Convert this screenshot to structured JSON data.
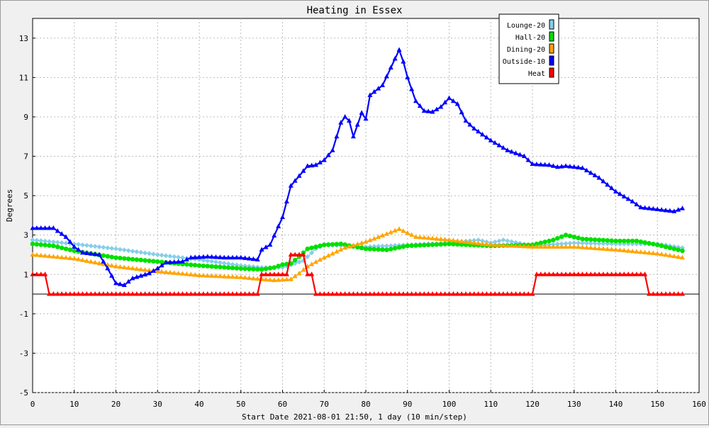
{
  "chart_data": {
    "type": "line",
    "title": "Heating in Essex",
    "xlabel": "Start Date 2021-08-01 21:50, 1 day (10 min/step)",
    "ylabel": "Degrees",
    "xlim": [
      0,
      160
    ],
    "ylim": [
      -5,
      14
    ],
    "xticks": [
      0,
      10,
      20,
      30,
      40,
      50,
      60,
      70,
      80,
      90,
      100,
      110,
      120,
      130,
      140,
      150,
      160
    ],
    "yticks": [
      -5,
      -3,
      -1,
      1,
      3,
      5,
      7,
      9,
      11,
      13
    ],
    "grid": true,
    "legend_position": "top-right",
    "series": [
      {
        "name": "Lounge-20",
        "color": "#87ceeb",
        "marker": "diamond",
        "points": [
          [
            0,
            2.75
          ],
          [
            10,
            2.55
          ],
          [
            20,
            2.3
          ],
          [
            30,
            2.0
          ],
          [
            40,
            1.75
          ],
          [
            50,
            1.45
          ],
          [
            55,
            1.35
          ],
          [
            60,
            1.35
          ],
          [
            65,
            1.7
          ],
          [
            68,
            2.3
          ],
          [
            70,
            2.5
          ],
          [
            80,
            2.4
          ],
          [
            90,
            2.5
          ],
          [
            100,
            2.6
          ],
          [
            107,
            2.75
          ],
          [
            110,
            2.6
          ],
          [
            113,
            2.75
          ],
          [
            120,
            2.45
          ],
          [
            130,
            2.6
          ],
          [
            140,
            2.55
          ],
          [
            150,
            2.55
          ],
          [
            156,
            2.35
          ]
        ]
      },
      {
        "name": "Hall-20",
        "color": "#00e000",
        "marker": "circle",
        "points": [
          [
            0,
            2.55
          ],
          [
            5,
            2.45
          ],
          [
            10,
            2.2
          ],
          [
            20,
            1.85
          ],
          [
            30,
            1.65
          ],
          [
            40,
            1.45
          ],
          [
            50,
            1.3
          ],
          [
            55,
            1.25
          ],
          [
            58,
            1.35
          ],
          [
            60,
            1.5
          ],
          [
            62,
            1.55
          ],
          [
            64,
            1.9
          ],
          [
            66,
            2.3
          ],
          [
            70,
            2.5
          ],
          [
            74,
            2.55
          ],
          [
            80,
            2.3
          ],
          [
            85,
            2.25
          ],
          [
            90,
            2.45
          ],
          [
            100,
            2.55
          ],
          [
            110,
            2.45
          ],
          [
            120,
            2.5
          ],
          [
            125,
            2.75
          ],
          [
            128,
            3.0
          ],
          [
            132,
            2.8
          ],
          [
            140,
            2.7
          ],
          [
            145,
            2.7
          ],
          [
            150,
            2.5
          ],
          [
            156,
            2.2
          ]
        ]
      },
      {
        "name": "Dining-20",
        "color": "#ffa500",
        "marker": "triangle",
        "points": [
          [
            0,
            2.0
          ],
          [
            10,
            1.8
          ],
          [
            20,
            1.4
          ],
          [
            30,
            1.15
          ],
          [
            40,
            0.95
          ],
          [
            50,
            0.85
          ],
          [
            55,
            0.75
          ],
          [
            58,
            0.7
          ],
          [
            62,
            0.75
          ],
          [
            64,
            1.05
          ],
          [
            66,
            1.4
          ],
          [
            70,
            1.85
          ],
          [
            75,
            2.35
          ],
          [
            80,
            2.65
          ],
          [
            85,
            3.05
          ],
          [
            88,
            3.3
          ],
          [
            92,
            2.9
          ],
          [
            100,
            2.75
          ],
          [
            110,
            2.5
          ],
          [
            120,
            2.4
          ],
          [
            130,
            2.4
          ],
          [
            140,
            2.25
          ],
          [
            150,
            2.05
          ],
          [
            156,
            1.85
          ]
        ]
      },
      {
        "name": "Outside-10",
        "color": "#0000ff",
        "marker": "triangle",
        "points": [
          [
            0,
            3.35
          ],
          [
            5,
            3.35
          ],
          [
            8,
            2.9
          ],
          [
            10,
            2.4
          ],
          [
            12,
            2.1
          ],
          [
            16,
            2.0
          ],
          [
            18,
            1.3
          ],
          [
            20,
            0.55
          ],
          [
            22,
            0.45
          ],
          [
            24,
            0.8
          ],
          [
            28,
            1.05
          ],
          [
            30,
            1.3
          ],
          [
            32,
            1.6
          ],
          [
            36,
            1.65
          ],
          [
            38,
            1.85
          ],
          [
            42,
            1.9
          ],
          [
            46,
            1.85
          ],
          [
            50,
            1.85
          ],
          [
            54,
            1.75
          ],
          [
            55,
            2.25
          ],
          [
            57,
            2.5
          ],
          [
            60,
            3.9
          ],
          [
            62,
            5.5
          ],
          [
            64,
            6.0
          ],
          [
            66,
            6.5
          ],
          [
            68,
            6.55
          ],
          [
            70,
            6.8
          ],
          [
            72,
            7.3
          ],
          [
            74,
            8.7
          ],
          [
            75,
            9.0
          ],
          [
            76,
            8.8
          ],
          [
            77,
            8.0
          ],
          [
            79,
            9.2
          ],
          [
            80,
            8.9
          ],
          [
            81,
            10.1
          ],
          [
            84,
            10.6
          ],
          [
            86,
            11.5
          ],
          [
            88,
            12.4
          ],
          [
            89,
            11.8
          ],
          [
            90,
            11.0
          ],
          [
            92,
            9.8
          ],
          [
            94,
            9.3
          ],
          [
            96,
            9.25
          ],
          [
            98,
            9.5
          ],
          [
            100,
            9.95
          ],
          [
            102,
            9.65
          ],
          [
            104,
            8.8
          ],
          [
            106,
            8.4
          ],
          [
            110,
            7.8
          ],
          [
            114,
            7.3
          ],
          [
            118,
            7.0
          ],
          [
            120,
            6.6
          ],
          [
            124,
            6.55
          ],
          [
            126,
            6.45
          ],
          [
            128,
            6.5
          ],
          [
            132,
            6.4
          ],
          [
            136,
            5.9
          ],
          [
            140,
            5.2
          ],
          [
            144,
            4.7
          ],
          [
            146,
            4.4
          ],
          [
            150,
            4.3
          ],
          [
            154,
            4.2
          ],
          [
            156,
            4.35
          ]
        ]
      },
      {
        "name": "Heat",
        "color": "#ff0000",
        "marker": "triangle",
        "points": [
          [
            0,
            1
          ],
          [
            3,
            1
          ],
          [
            4,
            0
          ],
          [
            54,
            0
          ],
          [
            55,
            1
          ],
          [
            61,
            1
          ],
          [
            62,
            2
          ],
          [
            65,
            2
          ],
          [
            66,
            1
          ],
          [
            67,
            1
          ],
          [
            68,
            0
          ],
          [
            120,
            0
          ],
          [
            121,
            1
          ],
          [
            147,
            1
          ],
          [
            148,
            0
          ],
          [
            156,
            0
          ]
        ]
      }
    ]
  }
}
